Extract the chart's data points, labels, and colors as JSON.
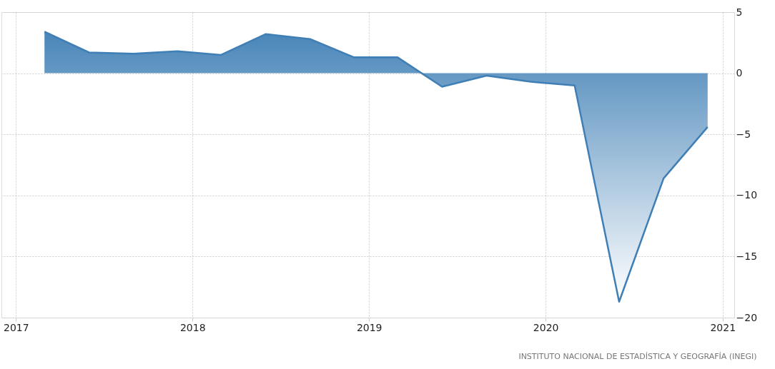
{
  "chart_data": {
    "type": "area",
    "x": [
      "2017-03",
      "2017-06",
      "2017-09",
      "2017-12",
      "2018-03",
      "2018-06",
      "2018-09",
      "2018-12",
      "2019-03",
      "2019-06",
      "2019-09",
      "2019-12",
      "2020-03",
      "2020-06",
      "2020-09",
      "2020-12"
    ],
    "series": [
      {
        "color": "#3f7fb5",
        "values": [
          3.4,
          1.7,
          1.6,
          1.8,
          1.5,
          3.2,
          2.8,
          1.3,
          1.3,
          -1.1,
          -0.2,
          -0.7,
          -1.0,
          -18.7,
          -8.6,
          -4.4
        ]
      }
    ],
    "xlim": [
      "2016-12-02",
      "2021-01-25"
    ],
    "xticks": [
      {
        "value": "2017",
        "label": "2017"
      },
      {
        "value": "2018",
        "label": "2018"
      },
      {
        "value": "2019",
        "label": "2019"
      },
      {
        "value": "2020",
        "label": "2020"
      },
      {
        "value": "2021",
        "label": "2021"
      }
    ],
    "ylim": [
      -20,
      5
    ],
    "yticks": [
      -20,
      -15,
      -10,
      -5,
      0,
      5
    ],
    "grid": true,
    "annotations": [
      "INSTITUTO NACIONAL DE ESTADÍSTICA Y GEOGRAFÍA (INEGI)"
    ]
  }
}
